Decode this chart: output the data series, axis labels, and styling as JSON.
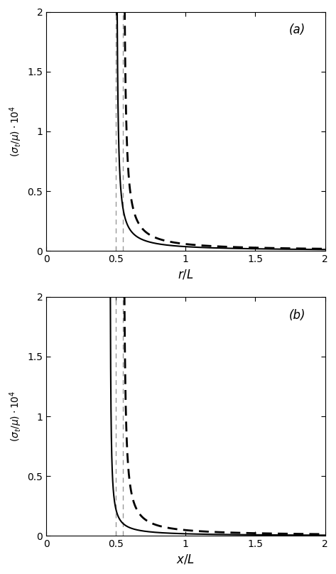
{
  "title_a": "(a)",
  "title_b": "(b)",
  "xlabel_a": "$r/L$",
  "xlabel_b": "$x/L$",
  "ylabel": "$(\\sigma_t/\\mu) \\cdot 10^4$",
  "xlim": [
    0,
    2
  ],
  "ylim": [
    0,
    2
  ],
  "xticks": [
    0,
    0.5,
    1,
    1.5,
    2
  ],
  "yticks": [
    0,
    0.5,
    1,
    1.5,
    2
  ],
  "vline1": 0.5,
  "vline2": 0.55,
  "vline_color": "#999999",
  "solid_color": "#000000",
  "dashed_color": "#000000",
  "panel_a": {
    "solid_x0": 0.5,
    "solid_scale": 0.018,
    "solid_power": 1.0,
    "dashed_x0": 0.55,
    "dashed_scale": 0.026,
    "dashed_power": 1.0
  },
  "panel_b": {
    "solid_x0": 0.455,
    "solid_scale": 0.01,
    "solid_power": 1.0,
    "dashed_x0": 0.55,
    "dashed_scale": 0.022,
    "dashed_power": 1.0
  }
}
